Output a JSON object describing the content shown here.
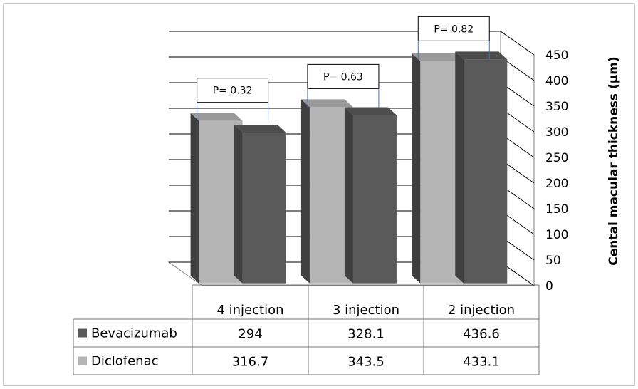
{
  "chart_data": {
    "type": "bar",
    "categories": [
      "4 injection",
      "3 injection",
      "2 injection"
    ],
    "series": [
      {
        "name": "Bevacizumab",
        "values": [
          294,
          328.1,
          436.6
        ],
        "color": "#5a5a5a"
      },
      {
        "name": "Diclofenac",
        "values": [
          316.7,
          343.5,
          433.1
        ],
        "color": "#b5b5b5"
      }
    ],
    "annotations": [
      "P= 0.32",
      "P= 0.63",
      "P= 0.82"
    ],
    "ylabel": "Cental macular thickness (μm)",
    "ylim": [
      0,
      450
    ],
    "yticks": [
      "0",
      "50",
      "100",
      "150",
      "200",
      "250",
      "300",
      "350",
      "400",
      "450"
    ],
    "grid": true,
    "legend": "data-table"
  }
}
